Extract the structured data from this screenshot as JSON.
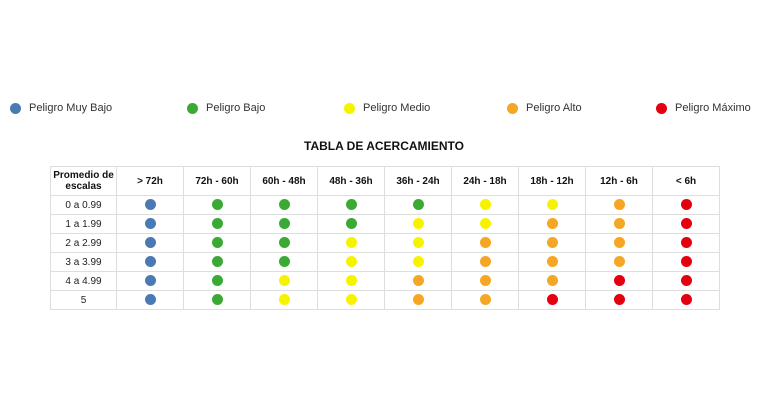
{
  "legend": [
    {
      "label": "Peligro Muy Bajo",
      "color": "#4a7ab5",
      "level": "muy-bajo"
    },
    {
      "label": "Peligro Bajo",
      "color": "#3aaa35",
      "level": "bajo"
    },
    {
      "label": "Peligro Medio",
      "color": "#f7f300",
      "level": "medio"
    },
    {
      "label": "Peligro Alto",
      "color": "#f5a623",
      "level": "alto"
    },
    {
      "label": "Peligro Máximo",
      "color": "#e3000f",
      "level": "maximo"
    }
  ],
  "table": {
    "title": "TABLA DE ACERCAMIENTO",
    "corner_header": "Promedio de escalas",
    "columns": [
      ">  72h",
      "72h - 60h",
      "60h - 48h",
      "48h - 36h",
      "36h - 24h",
      "24h - 18h",
      "18h - 12h",
      "12h - 6h",
      "< 6h"
    ],
    "rows": [
      {
        "label": "0 a 0.99",
        "levels": [
          "muy-bajo",
          "bajo",
          "bajo",
          "bajo",
          "bajo",
          "medio",
          "medio",
          "alto",
          "maximo"
        ]
      },
      {
        "label": "1 a 1.99",
        "levels": [
          "muy-bajo",
          "bajo",
          "bajo",
          "bajo",
          "medio",
          "medio",
          "alto",
          "alto",
          "maximo"
        ]
      },
      {
        "label": "2 a 2.99",
        "levels": [
          "muy-bajo",
          "bajo",
          "bajo",
          "medio",
          "medio",
          "alto",
          "alto",
          "alto",
          "maximo"
        ]
      },
      {
        "label": "3 a 3.99",
        "levels": [
          "muy-bajo",
          "bajo",
          "bajo",
          "medio",
          "medio",
          "alto",
          "alto",
          "alto",
          "maximo"
        ]
      },
      {
        "label": "4 a 4.99",
        "levels": [
          "muy-bajo",
          "bajo",
          "medio",
          "medio",
          "alto",
          "alto",
          "alto",
          "maximo",
          "maximo"
        ]
      },
      {
        "label": "5",
        "levels": [
          "muy-bajo",
          "bajo",
          "medio",
          "medio",
          "alto",
          "alto",
          "maximo",
          "maximo",
          "maximo"
        ]
      }
    ]
  }
}
